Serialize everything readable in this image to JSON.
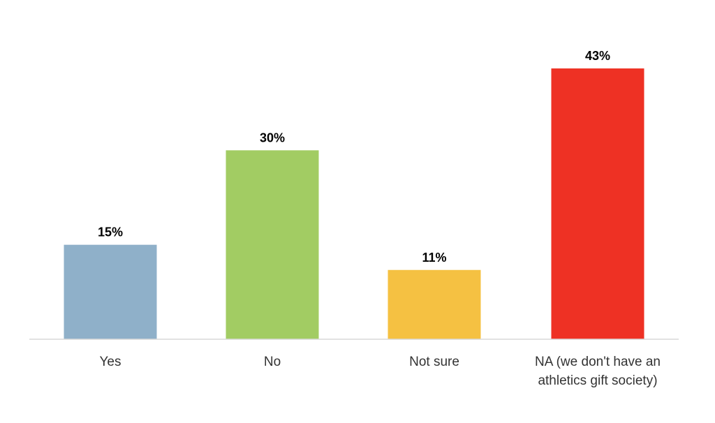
{
  "chart_data": {
    "type": "bar",
    "categories": [
      [
        "Yes"
      ],
      [
        "No"
      ],
      [
        "Not sure"
      ],
      [
        "NA (we don't have an",
        "athletics gift society)"
      ]
    ],
    "values": [
      15,
      30,
      11,
      43
    ],
    "data_labels": [
      "15%",
      "30%",
      "11%",
      "43%"
    ],
    "unit": "%",
    "ylim": [
      0,
      45
    ],
    "grid": false,
    "legend": "none",
    "colors": [
      "#8fb0c9",
      "#a2cc63",
      "#f5c142",
      "#ee3124"
    ],
    "axis_color": "#d9d9d9"
  }
}
